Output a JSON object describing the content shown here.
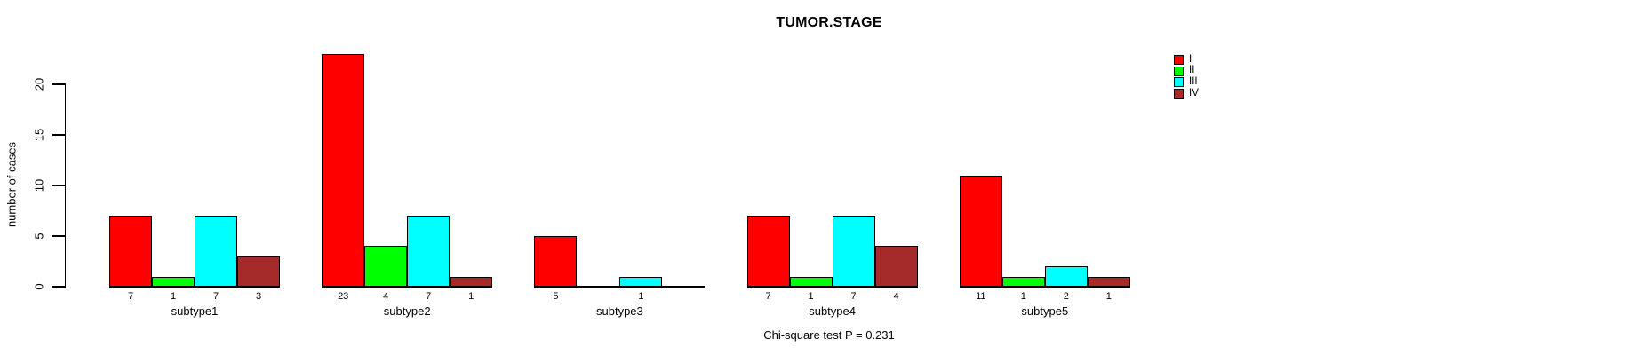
{
  "chart_data": {
    "type": "bar",
    "title": "TUMOR.STAGE",
    "xlabel": "",
    "ylabel": "number of cases",
    "annotation": "Chi-square test P = 0.231",
    "categories": [
      "subtype1",
      "subtype2",
      "subtype3",
      "subtype4",
      "subtype5"
    ],
    "series": [
      {
        "name": "I",
        "color": "#FF0000",
        "values": [
          7,
          23,
          5,
          7,
          11
        ]
      },
      {
        "name": "II",
        "color": "#00FF00",
        "values": [
          1,
          4,
          0,
          1,
          1
        ]
      },
      {
        "name": "III",
        "color": "#00FFFF",
        "values": [
          7,
          7,
          1,
          7,
          2
        ]
      },
      {
        "name": "IV",
        "color": "#A52A2A",
        "values": [
          3,
          1,
          0,
          4,
          1
        ]
      }
    ],
    "yticks": [
      0,
      5,
      10,
      15,
      20
    ],
    "ylim": [
      0,
      23
    ],
    "grid": false,
    "legend_position": "top-right",
    "legend_labels": [
      "I",
      "II",
      "III",
      "IV"
    ],
    "bar_value_labels": true,
    "zero_bars_unlabeled": true,
    "bar_border_color": "#000000",
    "text_color": "#000000",
    "background_color": "#FFFFFF"
  }
}
